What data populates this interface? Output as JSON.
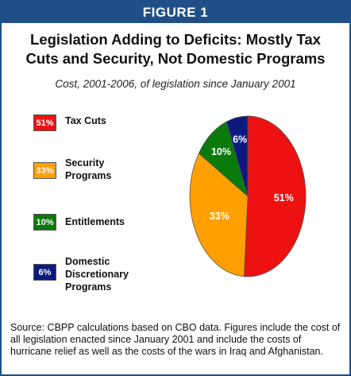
{
  "header": {
    "figure_label": "FIGURE 1"
  },
  "title_line1": "Legislation Adding to Deficits: Mostly Tax",
  "title_line2": "Cuts and Security, Not Domestic Programs",
  "subtitle": "Cost, 2001-2006, of legislation since January 2001",
  "source_note": "Source: CBPP calculations based on CBO data.  Figures include the cost of all legislation enacted since January 2001 and include the costs of hurricane relief as well as the costs of the wars in Iraq and Afghanistan.",
  "chart_data": {
    "type": "pie",
    "slices": [
      {
        "label": "Tax Cuts",
        "value": 51,
        "display": "51%",
        "color": "#ee1111"
      },
      {
        "label": "Security\nPrograms",
        "value": 33,
        "display": "33%",
        "color": "#ffa000"
      },
      {
        "label": "Entitlements",
        "value": 10,
        "display": "10%",
        "color": "#0a7a0a"
      },
      {
        "label": "Domestic\nDiscretionary\nPrograms",
        "value": 6,
        "display": "6%",
        "color": "#0c1a80"
      }
    ],
    "legend_position": "left"
  }
}
